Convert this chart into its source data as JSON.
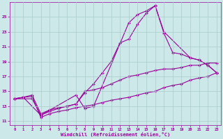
{
  "xlabel": "Windchill (Refroidissement éolien,°C)",
  "xlim": [
    -0.5,
    23.5
  ],
  "ylim": [
    10.5,
    27.0
  ],
  "xticks": [
    0,
    1,
    2,
    3,
    4,
    5,
    6,
    7,
    8,
    9,
    10,
    11,
    12,
    13,
    14,
    15,
    16,
    17,
    18,
    19,
    20,
    21,
    22,
    23
  ],
  "yticks": [
    11,
    13,
    15,
    17,
    19,
    21,
    23,
    25
  ],
  "bg_color": "#cde8e8",
  "grid_color": "#aacccc",
  "line_color": "#990099",
  "line1_x": [
    0,
    1,
    3,
    7,
    8,
    9,
    13,
    14,
    15,
    16,
    17,
    20,
    21,
    22,
    23
  ],
  "line1_y": [
    14.0,
    14.2,
    11.8,
    14.5,
    12.7,
    13.0,
    24.2,
    25.3,
    25.8,
    26.5,
    23.0,
    19.5,
    19.2,
    18.5,
    17.5
  ],
  "line2_x": [
    0,
    2,
    3,
    4,
    5,
    6,
    7,
    8,
    9,
    10,
    11,
    12,
    13,
    14,
    15,
    16,
    17,
    18,
    19,
    20,
    21,
    22,
    23
  ],
  "line2_y": [
    14.0,
    14.0,
    11.8,
    12.3,
    12.7,
    13.0,
    13.3,
    14.8,
    16.0,
    17.5,
    19.0,
    21.5,
    22.0,
    24.0,
    25.5,
    26.5,
    22.8,
    20.2,
    20.0,
    19.5,
    19.2,
    18.5,
    17.5
  ],
  "line3_x": [
    0,
    1,
    2,
    3,
    4,
    5,
    6,
    7,
    8,
    9,
    10,
    11,
    12,
    13,
    14,
    15,
    16,
    17,
    18,
    19,
    20,
    21,
    22,
    23
  ],
  "line3_y": [
    14.0,
    14.2,
    14.5,
    12.0,
    12.5,
    12.8,
    13.0,
    13.3,
    15.0,
    15.2,
    15.5,
    16.0,
    16.5,
    17.0,
    17.2,
    17.5,
    17.8,
    18.0,
    18.0,
    18.2,
    18.5,
    18.5,
    18.8,
    18.8
  ],
  "line4_x": [
    0,
    1,
    2,
    3,
    4,
    5,
    6,
    7,
    8,
    9,
    10,
    11,
    12,
    13,
    14,
    15,
    16,
    17,
    18,
    19,
    20,
    21,
    22,
    23
  ],
  "line4_y": [
    14.0,
    14.2,
    14.3,
    11.5,
    12.0,
    12.3,
    12.5,
    12.8,
    13.0,
    13.2,
    13.5,
    13.8,
    14.0,
    14.2,
    14.5,
    14.8,
    15.0,
    15.5,
    15.8,
    16.0,
    16.5,
    16.8,
    17.0,
    17.5
  ]
}
